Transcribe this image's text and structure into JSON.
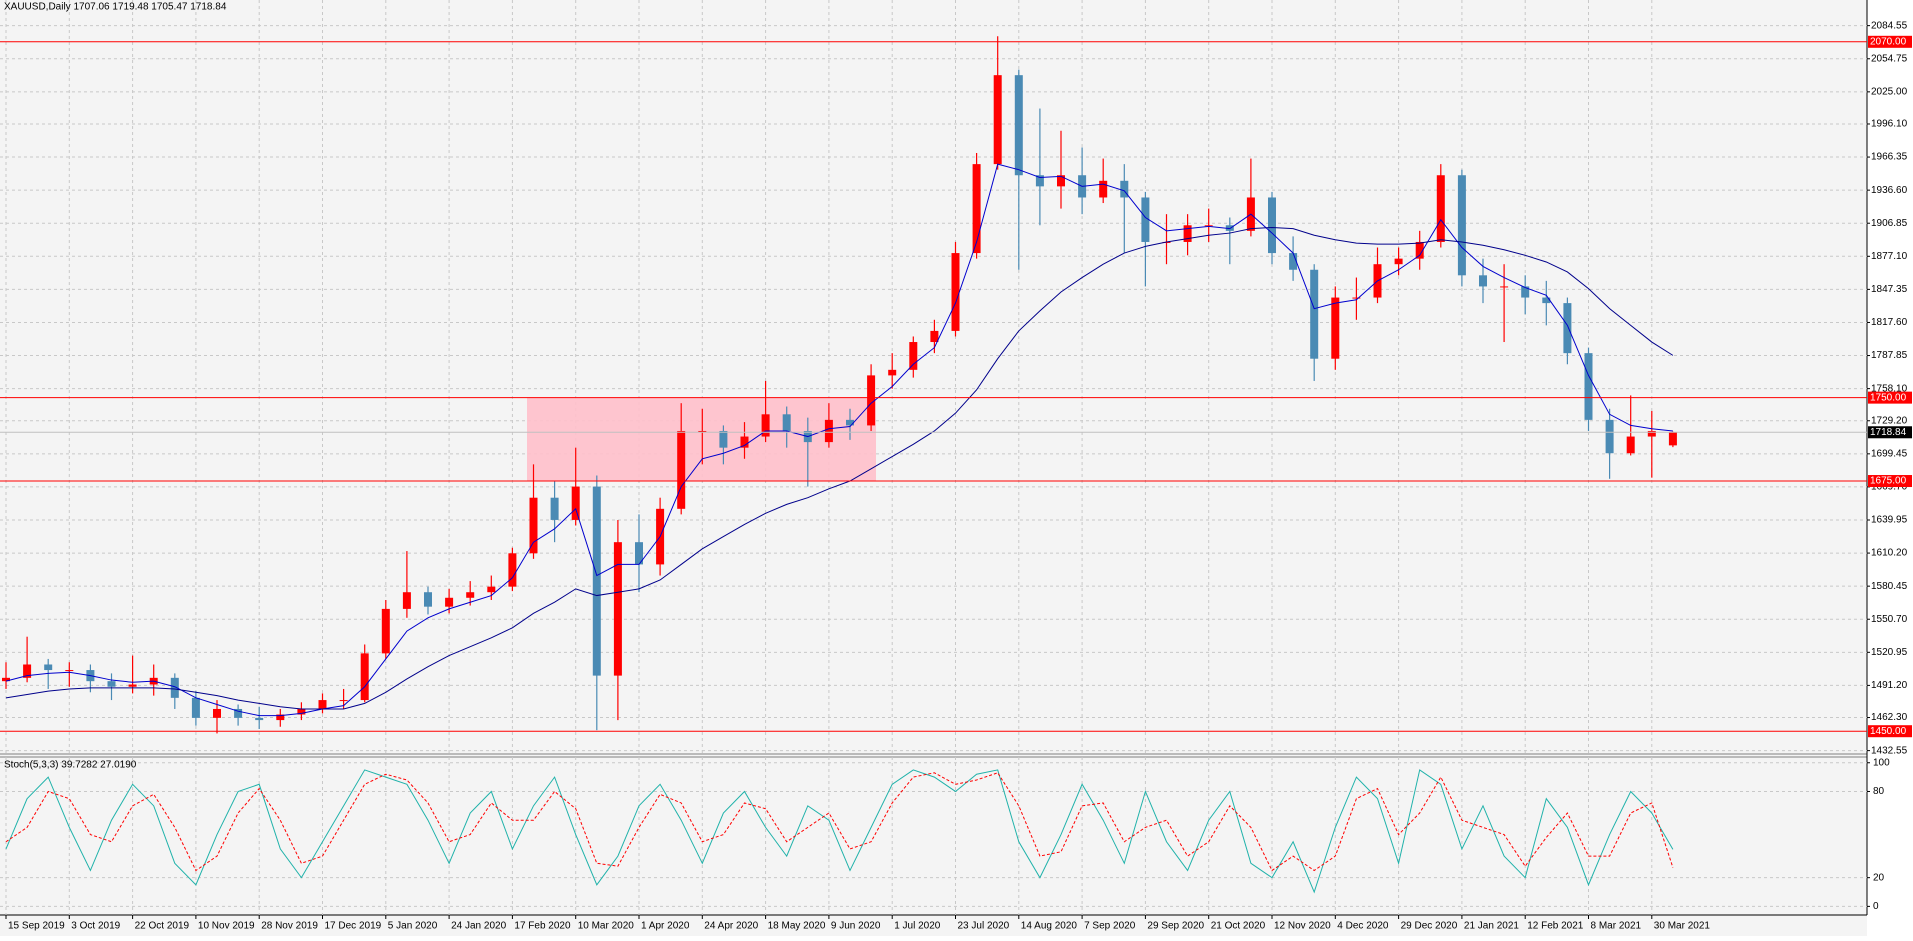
{
  "chart_data": {
    "type": "candlestick",
    "title": "XAUUSD,Daily  1707.06 1719.48 1705.47 1718.84",
    "categories": [
      "15 Sep 2019",
      null,
      null,
      "3 Oct 2019",
      null,
      null,
      "22 Oct 2019",
      null,
      null,
      "10 Nov 2019",
      null,
      null,
      "28 Nov 2019",
      null,
      null,
      "17 Dec 2019",
      null,
      null,
      "5 Jan 2020",
      null,
      null,
      "24 Jan 2020",
      null,
      null,
      "17 Feb 2020",
      null,
      null,
      "10 Mar 2020",
      null,
      null,
      "1 Apr 2020",
      null,
      null,
      "24 Apr 2020",
      null,
      null,
      "18 May 2020",
      null,
      null,
      "9 Jun 2020",
      null,
      null,
      "1 Jul 2020",
      null,
      null,
      "23 Jul 2020",
      null,
      null,
      "14 Aug 2020",
      null,
      null,
      "7 Sep 2020",
      null,
      null,
      "29 Sep 2020",
      null,
      null,
      "21 Oct 2020",
      null,
      null,
      "12 Nov 2020",
      null,
      null,
      "4 Dec 2020",
      null,
      null,
      "29 Dec 2020",
      null,
      null,
      "21 Jan 2021",
      null,
      null,
      "12 Feb 2021",
      null,
      null,
      "8 Mar 2021",
      null,
      null,
      "30 Mar 2021",
      null
    ],
    "ohlc": [
      [
        1495,
        1512,
        1488,
        1498
      ],
      [
        1498,
        1535,
        1494,
        1510
      ],
      [
        1510,
        1515,
        1488,
        1505
      ],
      [
        1505,
        1512,
        1490,
        1505
      ],
      [
        1505,
        1510,
        1485,
        1495
      ],
      [
        1495,
        1502,
        1478,
        1490
      ],
      [
        1490,
        1518,
        1484,
        1492
      ],
      [
        1492,
        1510,
        1482,
        1498
      ],
      [
        1498,
        1502,
        1470,
        1480
      ],
      [
        1480,
        1486,
        1455,
        1462
      ],
      [
        1462,
        1478,
        1448,
        1470
      ],
      [
        1470,
        1474,
        1455,
        1462
      ],
      [
        1462,
        1472,
        1452,
        1460
      ],
      [
        1460,
        1470,
        1454,
        1465
      ],
      [
        1465,
        1476,
        1460,
        1470
      ],
      [
        1470,
        1484,
        1466,
        1478
      ],
      [
        1478,
        1488,
        1470,
        1478
      ],
      [
        1478,
        1528,
        1476,
        1520
      ],
      [
        1520,
        1568,
        1515,
        1560
      ],
      [
        1560,
        1612,
        1552,
        1575
      ],
      [
        1575,
        1580,
        1555,
        1562
      ],
      [
        1562,
        1578,
        1556,
        1570
      ],
      [
        1570,
        1585,
        1563,
        1575
      ],
      [
        1575,
        1590,
        1568,
        1580
      ],
      [
        1580,
        1615,
        1576,
        1610
      ],
      [
        1610,
        1690,
        1605,
        1660
      ],
      [
        1660,
        1675,
        1620,
        1640
      ],
      [
        1640,
        1705,
        1635,
        1670
      ],
      [
        1670,
        1680,
        1451,
        1500
      ],
      [
        1500,
        1640,
        1460,
        1620
      ],
      [
        1620,
        1645,
        1575,
        1600
      ],
      [
        1600,
        1660,
        1590,
        1650
      ],
      [
        1650,
        1745,
        1645,
        1720
      ],
      [
        1720,
        1740,
        1690,
        1720
      ],
      [
        1720,
        1725,
        1690,
        1705
      ],
      [
        1705,
        1728,
        1695,
        1715
      ],
      [
        1715,
        1765,
        1710,
        1735
      ],
      [
        1735,
        1742,
        1705,
        1720
      ],
      [
        1720,
        1732,
        1670,
        1710
      ],
      [
        1710,
        1745,
        1705,
        1730
      ],
      [
        1730,
        1740,
        1712,
        1725
      ],
      [
        1725,
        1780,
        1720,
        1770
      ],
      [
        1770,
        1790,
        1758,
        1775
      ],
      [
        1775,
        1805,
        1768,
        1800
      ],
      [
        1800,
        1820,
        1790,
        1810
      ],
      [
        1810,
        1890,
        1805,
        1880
      ],
      [
        1880,
        1970,
        1875,
        1960
      ],
      [
        1960,
        2075,
        1955,
        2040
      ],
      [
        2040,
        2045,
        1865,
        1950
      ],
      [
        1950,
        2010,
        1905,
        1940
      ],
      [
        1940,
        1990,
        1920,
        1950
      ],
      [
        1950,
        1975,
        1915,
        1930
      ],
      [
        1930,
        1965,
        1925,
        1945
      ],
      [
        1945,
        1960,
        1880,
        1930
      ],
      [
        1930,
        1935,
        1850,
        1890
      ],
      [
        1890,
        1915,
        1870,
        1890
      ],
      [
        1890,
        1915,
        1878,
        1905
      ],
      [
        1905,
        1920,
        1890,
        1905
      ],
      [
        1905,
        1912,
        1870,
        1900
      ],
      [
        1900,
        1965,
        1895,
        1930
      ],
      [
        1930,
        1935,
        1870,
        1880
      ],
      [
        1880,
        1895,
        1855,
        1865
      ],
      [
        1865,
        1870,
        1765,
        1785
      ],
      [
        1785,
        1850,
        1775,
        1840
      ],
      [
        1840,
        1858,
        1820,
        1840
      ],
      [
        1840,
        1885,
        1835,
        1870
      ],
      [
        1870,
        1885,
        1860,
        1875
      ],
      [
        1875,
        1900,
        1865,
        1890
      ],
      [
        1890,
        1960,
        1885,
        1950
      ],
      [
        1950,
        1955,
        1850,
        1860
      ],
      [
        1860,
        1875,
        1835,
        1850
      ],
      [
        1850,
        1870,
        1800,
        1850
      ],
      [
        1850,
        1860,
        1825,
        1840
      ],
      [
        1840,
        1855,
        1815,
        1835
      ],
      [
        1835,
        1840,
        1780,
        1790
      ],
      [
        1790,
        1795,
        1720,
        1730
      ],
      [
        1730,
        1740,
        1677,
        1700
      ],
      [
        1700,
        1752,
        1698,
        1715
      ],
      [
        1715,
        1738,
        1678,
        1720
      ],
      [
        1707.06,
        1719.48,
        1705.47,
        1718.84
      ]
    ],
    "up_color": "#ff0000",
    "down_color": "#4a8ab4",
    "ma_lines": [
      {
        "color": "#0000cd",
        "values": [
          1495,
          1500,
          1502,
          1503,
          1500,
          1496,
          1494,
          1495,
          1490,
          1480,
          1474,
          1468,
          1464,
          1464,
          1466,
          1470,
          1473,
          1490,
          1515,
          1540,
          1552,
          1560,
          1566,
          1572,
          1588,
          1620,
          1632,
          1650,
          1590,
          1600,
          1600,
          1625,
          1670,
          1695,
          1700,
          1707,
          1720,
          1720,
          1715,
          1722,
          1724,
          1745,
          1760,
          1780,
          1795,
          1835,
          1890,
          1960,
          1955,
          1948,
          1949,
          1940,
          1942,
          1936,
          1912,
          1900,
          1902,
          1904,
          1902,
          1915,
          1898,
          1880,
          1830,
          1835,
          1838,
          1855,
          1865,
          1878,
          1910,
          1885,
          1868,
          1858,
          1849,
          1842,
          1815,
          1770,
          1735,
          1725,
          1722,
          1720
        ]
      },
      {
        "color": "#00008b",
        "values": [
          1480,
          1483,
          1486,
          1488,
          1489,
          1489,
          1489,
          1489,
          1488,
          1485,
          1482,
          1478,
          1475,
          1472,
          1470,
          1470,
          1470,
          1475,
          1485,
          1497,
          1508,
          1518,
          1526,
          1534,
          1543,
          1556,
          1566,
          1578,
          1572,
          1575,
          1578,
          1586,
          1600,
          1614,
          1625,
          1636,
          1646,
          1654,
          1660,
          1668,
          1675,
          1686,
          1697,
          1708,
          1720,
          1736,
          1757,
          1785,
          1810,
          1828,
          1845,
          1858,
          1870,
          1880,
          1886,
          1890,
          1893,
          1896,
          1898,
          1902,
          1903,
          1902,
          1896,
          1892,
          1889,
          1888,
          1888,
          1889,
          1892,
          1890,
          1887,
          1883,
          1878,
          1872,
          1863,
          1848,
          1830,
          1815,
          1800,
          1788
        ]
      }
    ],
    "ylim": [
      1430.4,
      2107.6
    ],
    "yticks": [
      {
        "value": 2084.55,
        "label": "2084.55"
      },
      {
        "value": 2054.75,
        "label": "2054.75"
      },
      {
        "value": 2025,
        "label": "2025.00"
      },
      {
        "value": 1996.1,
        "label": "1996.10"
      },
      {
        "value": 1966.35,
        "label": "1966.35"
      },
      {
        "value": 1936.6,
        "label": "1936.60"
      },
      {
        "value": 1906.85,
        "label": "1906.85"
      },
      {
        "value": 1877.1,
        "label": "1877.10"
      },
      {
        "value": 1847.35,
        "label": "1847.35"
      },
      {
        "value": 1817.6,
        "label": "1817.60"
      },
      {
        "value": 1787.85,
        "label": "1787.85"
      },
      {
        "value": 1758.1,
        "label": "1758.10"
      },
      {
        "value": 1729.2,
        "label": "1729.20"
      },
      {
        "value": 1699.45,
        "label": "1699.45"
      },
      {
        "value": 1669.7,
        "label": "1669.70"
      },
      {
        "value": 1639.95,
        "label": "1639.95"
      },
      {
        "value": 1610.2,
        "label": "1610.20"
      },
      {
        "value": 1580.45,
        "label": "1580.45"
      },
      {
        "value": 1550.7,
        "label": "1550.70"
      },
      {
        "value": 1520.95,
        "label": "1520.95"
      },
      {
        "value": 1491.2,
        "label": "1491.20"
      },
      {
        "value": 1462.3,
        "label": "1462.30"
      },
      {
        "value": 1432.55,
        "label": "1432.55"
      }
    ],
    "grid": true,
    "levels": [
      {
        "value": 2070,
        "label": "2070.00"
      },
      {
        "value": 1750,
        "label": "1750.00"
      },
      {
        "value": 1675,
        "label": "1675.00"
      },
      {
        "value": 1450,
        "label": "1450.00"
      }
    ],
    "level_color": "#ff0000",
    "current_price": 1718.84,
    "oscillator": {
      "type": "line",
      "title": "Stoch(5,3,3) 39.7282 27.0190",
      "series": [
        {
          "color": "#20b2aa",
          "values": [
            40,
            75,
            90,
            55,
            25,
            60,
            85,
            70,
            30,
            15,
            50,
            80,
            85,
            40,
            20,
            45,
            70,
            95,
            90,
            85,
            60,
            30,
            65,
            80,
            40,
            70,
            90,
            50,
            15,
            35,
            70,
            85,
            60,
            30,
            65,
            80,
            55,
            35,
            70,
            60,
            25,
            55,
            85,
            95,
            90,
            80,
            92,
            95,
            45,
            20,
            50,
            85,
            60,
            30,
            80,
            45,
            25,
            60,
            80,
            30,
            20,
            45,
            10,
            55,
            90,
            75,
            30,
            95,
            85,
            40,
            70,
            35,
            20,
            75,
            55,
            15,
            50,
            80,
            65,
            39.73
          ]
        },
        {
          "color": "#ff0000",
          "values": [
            45,
            55,
            80,
            75,
            50,
            45,
            70,
            78,
            55,
            25,
            35,
            65,
            82,
            60,
            30,
            35,
            60,
            85,
            92,
            88,
            72,
            45,
            50,
            72,
            60,
            60,
            80,
            68,
            30,
            28,
            55,
            78,
            72,
            45,
            50,
            72,
            68,
            45,
            55,
            65,
            40,
            45,
            72,
            90,
            93,
            85,
            88,
            93,
            70,
            35,
            38,
            70,
            72,
            45,
            55,
            60,
            35,
            45,
            70,
            55,
            25,
            35,
            25,
            35,
            75,
            82,
            50,
            65,
            90,
            60,
            55,
            50,
            28,
            48,
            65,
            35,
            35,
            65,
            72,
            27.02
          ]
        }
      ],
      "ylim": [
        -6,
        104
      ],
      "yticks": [
        0,
        20,
        80,
        100
      ]
    }
  }
}
